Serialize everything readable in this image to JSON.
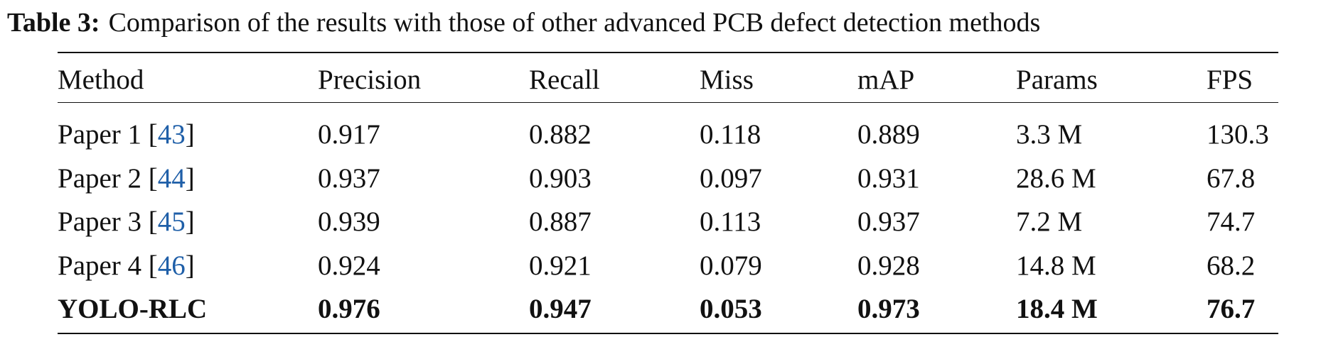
{
  "caption": {
    "label": "Table 3:",
    "text": "Comparison of the results with those of other advanced PCB defect detection methods"
  },
  "table": {
    "header": [
      "Method",
      "Precision",
      "Recall",
      "Miss",
      "mAP",
      "Params",
      "FPS"
    ],
    "rows": [
      [
        [
          "Paper 1 [",
          "43",
          "]"
        ],
        "0.917",
        "0.882",
        "0.118",
        "0.889",
        "3.3 M",
        "130.3"
      ],
      [
        [
          "Paper 2 [",
          "44",
          "]"
        ],
        "0.937",
        "0.903",
        "0.097",
        "0.931",
        "28.6 M",
        "67.8"
      ],
      [
        [
          "Paper 3 [",
          "45",
          "]"
        ],
        "0.939",
        "0.887",
        "0.113",
        "0.937",
        "7.2 M",
        "74.7"
      ],
      [
        [
          "Paper 4 [",
          "46",
          "]"
        ],
        "0.924",
        "0.921",
        "0.079",
        "0.928",
        "14.8 M",
        "68.2"
      ],
      [
        "YOLO-RLC",
        "0.976",
        "0.947",
        "0.053",
        "0.973",
        "18.4 M",
        "76.7"
      ]
    ]
  }
}
